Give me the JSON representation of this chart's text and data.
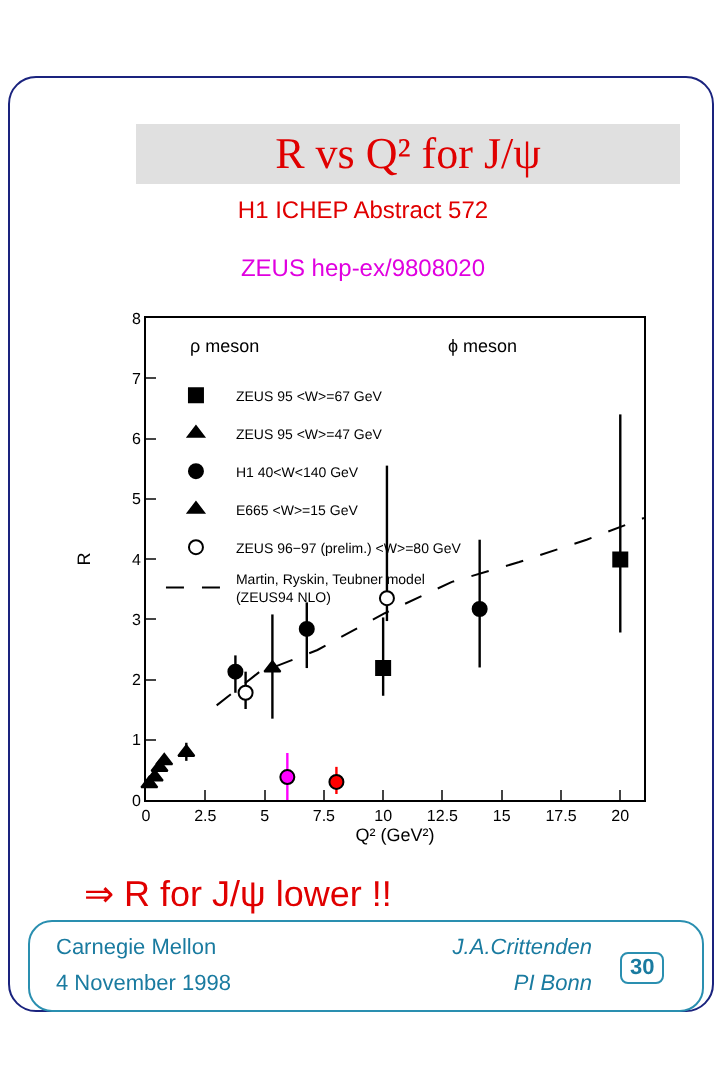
{
  "chart_data": {
    "type": "scatter",
    "title": "R vs Q² for J/ψ",
    "subtitle": "H1 ICHEP Abstract 572\nZEUS hep-ex/9808020",
    "xlabel": "Q² (GeV²)",
    "ylabel": "R",
    "xlim": [
      0,
      21
    ],
    "xticks": [
      0,
      2.5,
      5,
      7.5,
      10,
      12.5,
      15,
      17.5,
      20
    ],
    "ylim": [
      0,
      8
    ],
    "yticks": [
      0,
      1,
      2,
      3,
      4,
      5,
      6,
      7,
      8
    ],
    "grid": false,
    "legend": "top left",
    "annotations": [
      "ρ meson",
      "ϕ meson",
      "⇒ R for J/ψ lower !!",
      "Carnegie Mellon",
      "4 November 1998",
      "J.A.Crittenden",
      "PI Bonn",
      "30"
    ],
    "series": [
      {
        "name": "ZEUS 95 <W>=67 GeV",
        "color": "#000000",
        "marker": "square",
        "x": [
          10,
          20
        ],
        "values": [
          2.19,
          3.99
        ],
        "errors": [
          [
            1.73,
            3.03
          ],
          [
            2.78,
            6.4
          ]
        ]
      },
      {
        "name": "ZEUS 95 <W>=47 GeV",
        "color": "#000000",
        "marker": "triangle",
        "x": [
          5.33
        ],
        "values": [
          2.19
        ],
        "errors": [
          [
            1.35,
            3.08
          ]
        ]
      },
      {
        "name": "H1 40<W<140 GeV",
        "color": "#000000",
        "marker": "circle",
        "x": [
          3.77,
          6.78,
          14.07
        ],
        "values": [
          2.13,
          2.84,
          3.17
        ],
        "errors": [
          [
            1.78,
            2.4
          ],
          [
            2.19,
            3.28
          ],
          [
            2.2,
            4.32
          ]
        ]
      },
      {
        "name": "E665 <W>=15 GeV",
        "color": "#000000",
        "marker": "triangle",
        "x": [
          0.14,
          0.37,
          0.57,
          0.77,
          1.7
        ],
        "values": [
          0.27,
          0.38,
          0.54,
          0.65,
          0.79
        ],
        "errors": [
          null,
          null,
          null,
          null,
          [
            0.65,
            0.95
          ]
        ]
      },
      {
        "name": "ZEUS 96−97 (prelim.) <W>=80 GeV",
        "color": "#ffffff",
        "marker": "circle",
        "x": [
          4.2,
          10.16
        ],
        "values": [
          1.78,
          3.35
        ],
        "errors": [
          [
            1.51,
            2.13
          ],
          [
            2.97,
            5.55
          ]
        ]
      },
      {
        "name": "Martin, Ryskin, Teubner model\n(ZEUS94 NLO)",
        "type": "line",
        "line_style": "dashed",
        "marker": "none",
        "color": "#000000",
        "x": [
          2.98,
          4.96,
          5.36,
          7.23,
          10.07,
          12.9,
          15.74,
          18.58,
          21
        ],
        "values": [
          1.57,
          2.18,
          2.2,
          2.49,
          3.1,
          3.62,
          3.95,
          4.32,
          4.68
        ]
      },
      {
        "color": "#ff00ff",
        "marker": "circle",
        "x": [
          5.96
        ],
        "values": [
          0.38
        ],
        "errors": [
          [
            0,
            0.78
          ]
        ]
      },
      {
        "color": "#ff0000",
        "marker": "circle",
        "x": [
          8.03
        ],
        "values": [
          0.3
        ],
        "errors": [
          [
            0.1,
            0.55
          ]
        ]
      }
    ]
  }
}
